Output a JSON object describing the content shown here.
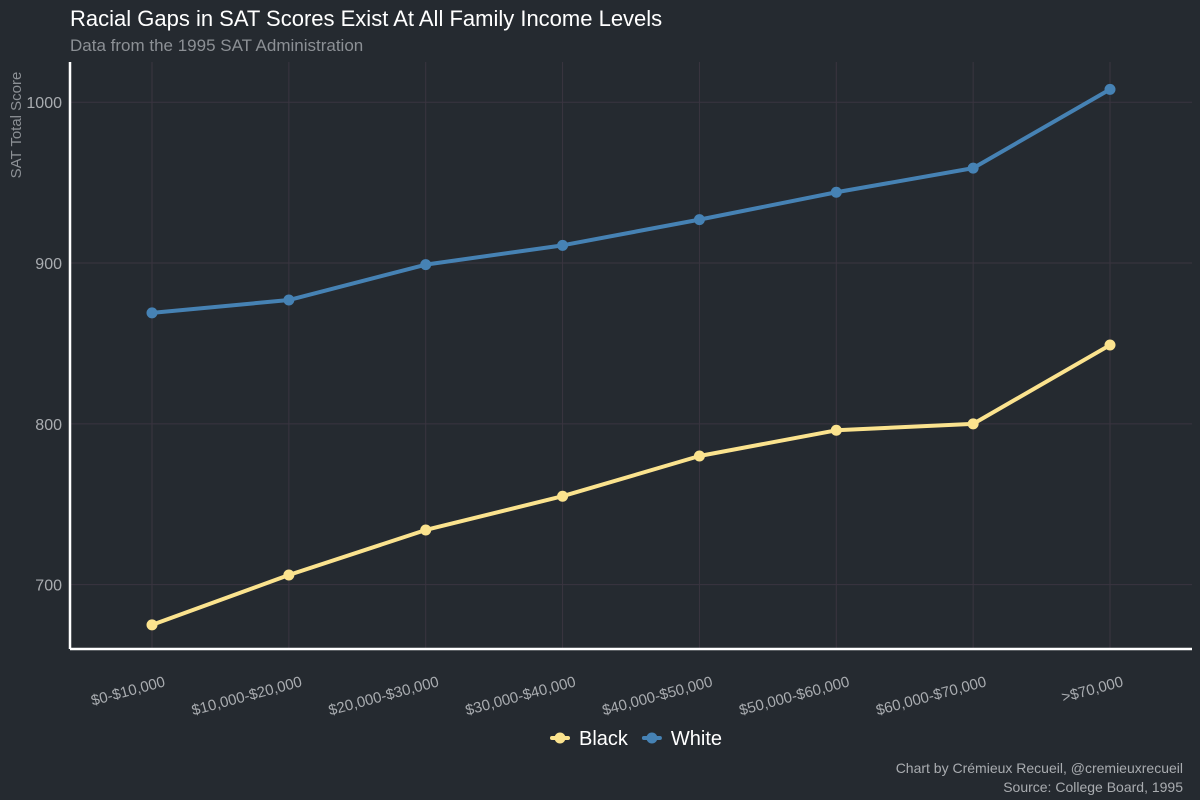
{
  "chart_data": {
    "type": "line",
    "title": "Racial Gaps in SAT Scores Exist At All Family Income Levels",
    "subtitle": "Data from the 1995 SAT Administration",
    "xlabel": "",
    "ylabel": "SAT Total Score",
    "categories": [
      "$0-$10,000",
      "$10,000-$20,000",
      "$20,000-$30,000",
      "$30,000-$40,000",
      "$40,000-$50,000",
      "$50,000-$60,000",
      "$60,000-$70,000",
      ">$70,000"
    ],
    "ylim": [
      660,
      1025
    ],
    "yticks": [
      700,
      800,
      900,
      1000
    ],
    "grid": true,
    "legend_position": "bottom",
    "series": [
      {
        "name": "Black",
        "color": "#fbe38e",
        "values": [
          675,
          706,
          734,
          755,
          780,
          796,
          800,
          849
        ]
      },
      {
        "name": "White",
        "color": "#4682b4",
        "values": [
          869,
          877,
          899,
          911,
          927,
          944,
          959,
          1008
        ]
      }
    ],
    "caption_line1": "Chart by Crémieux Recueil, @cremieuxrecueil",
    "caption_line2": "Source: College Board, 1995"
  }
}
